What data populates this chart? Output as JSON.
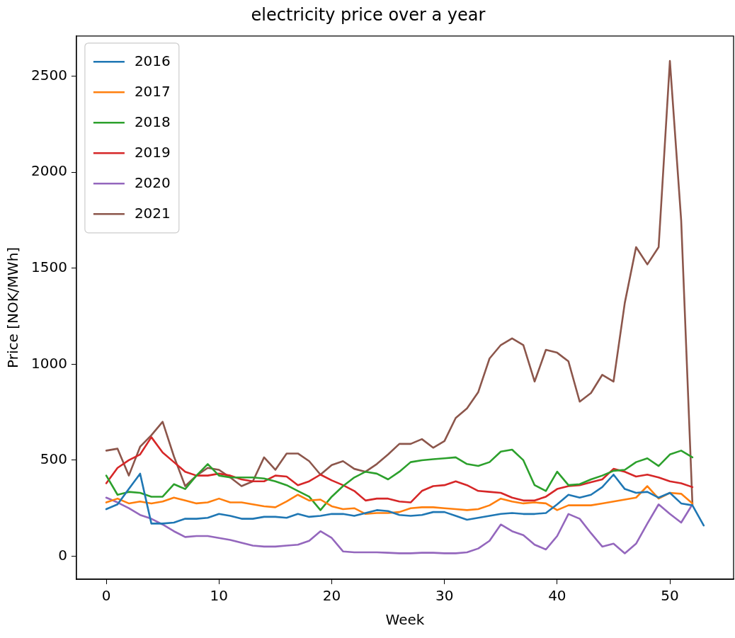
{
  "chart_data": {
    "type": "line",
    "title": "electricity price over a year",
    "xlabel": "Week",
    "ylabel": "Price [NOK/MWh]",
    "x": [
      0,
      1,
      2,
      3,
      4,
      5,
      6,
      7,
      8,
      9,
      10,
      11,
      12,
      13,
      14,
      15,
      16,
      17,
      18,
      19,
      20,
      21,
      22,
      23,
      24,
      25,
      26,
      27,
      28,
      29,
      30,
      31,
      32,
      33,
      34,
      35,
      36,
      37,
      38,
      39,
      40,
      41,
      42,
      43,
      44,
      45,
      46,
      47,
      48,
      49,
      50,
      51,
      52
    ],
    "xlim": [
      -2.65,
      55.65
    ],
    "xticks": [
      0,
      10,
      20,
      30,
      40,
      50
    ],
    "ylim": [
      -120,
      2710
    ],
    "yticks": [
      0,
      500,
      1000,
      1500,
      2000,
      2500
    ],
    "grid": false,
    "legend": "top left",
    "marker": "none",
    "line_style": "solid",
    "series": [
      {
        "name": "2016",
        "color": "#1f77b4",
        "x": [
          0,
          1,
          2,
          3,
          4,
          5,
          6,
          7,
          8,
          9,
          10,
          11,
          12,
          13,
          14,
          15,
          16,
          17,
          18,
          19,
          20,
          21,
          22,
          23,
          24,
          25,
          26,
          27,
          28,
          29,
          30,
          31,
          32,
          33,
          34,
          35,
          36,
          37,
          38,
          39,
          40,
          41,
          42,
          43,
          44,
          45,
          46,
          47,
          48,
          49,
          50,
          51,
          52,
          53
        ],
        "values": [
          245,
          270,
          350,
          430,
          170,
          170,
          175,
          195,
          195,
          200,
          220,
          210,
          195,
          195,
          205,
          205,
          200,
          220,
          205,
          210,
          220,
          220,
          210,
          225,
          240,
          235,
          215,
          210,
          215,
          230,
          230,
          210,
          190,
          200,
          210,
          220,
          225,
          220,
          220,
          225,
          270,
          320,
          305,
          320,
          360,
          425,
          350,
          330,
          335,
          305,
          330,
          275,
          265,
          160
        ]
      },
      {
        "name": "2017",
        "color": "#ff7f0e",
        "values": [
          280,
          300,
          275,
          285,
          275,
          285,
          305,
          290,
          275,
          280,
          300,
          280,
          280,
          270,
          260,
          255,
          285,
          320,
          290,
          295,
          260,
          245,
          250,
          220,
          225,
          225,
          230,
          250,
          255,
          255,
          250,
          245,
          240,
          245,
          265,
          300,
          285,
          275,
          280,
          275,
          240,
          265,
          265,
          265,
          275,
          285,
          295,
          305,
          365,
          300,
          330,
          325,
          275
        ]
      },
      {
        "name": "2018",
        "color": "#2ca02c",
        "values": [
          420,
          320,
          335,
          330,
          310,
          310,
          375,
          350,
          420,
          480,
          420,
          410,
          410,
          410,
          405,
          390,
          370,
          340,
          310,
          240,
          310,
          365,
          410,
          440,
          430,
          400,
          440,
          490,
          500,
          505,
          510,
          515,
          480,
          470,
          490,
          545,
          555,
          500,
          370,
          340,
          440,
          370,
          375,
          400,
          420,
          445,
          450,
          490,
          510,
          470,
          530,
          550,
          515
        ]
      },
      {
        "name": "2019",
        "color": "#d62728",
        "values": [
          380,
          460,
          500,
          530,
          620,
          540,
          490,
          440,
          420,
          420,
          430,
          420,
          400,
          390,
          390,
          420,
          415,
          370,
          390,
          425,
          395,
          370,
          340,
          290,
          300,
          300,
          285,
          280,
          340,
          365,
          370,
          390,
          370,
          340,
          335,
          330,
          305,
          290,
          290,
          310,
          350,
          365,
          370,
          385,
          400,
          455,
          440,
          415,
          425,
          410,
          390,
          380,
          360
        ]
      },
      {
        "name": "2020",
        "color": "#9467bd",
        "values": [
          305,
          280,
          250,
          215,
          195,
          165,
          130,
          100,
          105,
          105,
          95,
          85,
          70,
          55,
          50,
          50,
          55,
          60,
          80,
          130,
          95,
          25,
          20,
          20,
          20,
          18,
          15,
          15,
          18,
          18,
          15,
          15,
          20,
          40,
          80,
          165,
          130,
          110,
          60,
          35,
          105,
          220,
          195,
          120,
          50,
          65,
          15,
          65,
          170,
          270,
          220,
          175,
          270
        ]
      },
      {
        "name": "2021",
        "color": "#8c564b",
        "values": [
          550,
          560,
          420,
          570,
          630,
          700,
          520,
          365,
          420,
          460,
          450,
          410,
          365,
          390,
          515,
          450,
          535,
          535,
          495,
          425,
          475,
          495,
          455,
          440,
          480,
          530,
          585,
          585,
          610,
          565,
          600,
          720,
          770,
          855,
          1030,
          1100,
          1135,
          1100,
          910,
          1075,
          1060,
          1015,
          805,
          850,
          945,
          910,
          1320,
          1610,
          1520,
          1610,
          2580,
          1750,
          270
        ]
      }
    ]
  }
}
